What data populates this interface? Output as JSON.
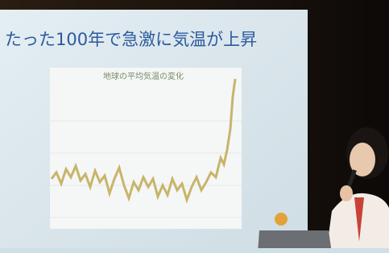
{
  "slide": {
    "title": "たった100年で急激に気温が上昇",
    "chart_title": "地球の平均気温の変化"
  }
}
